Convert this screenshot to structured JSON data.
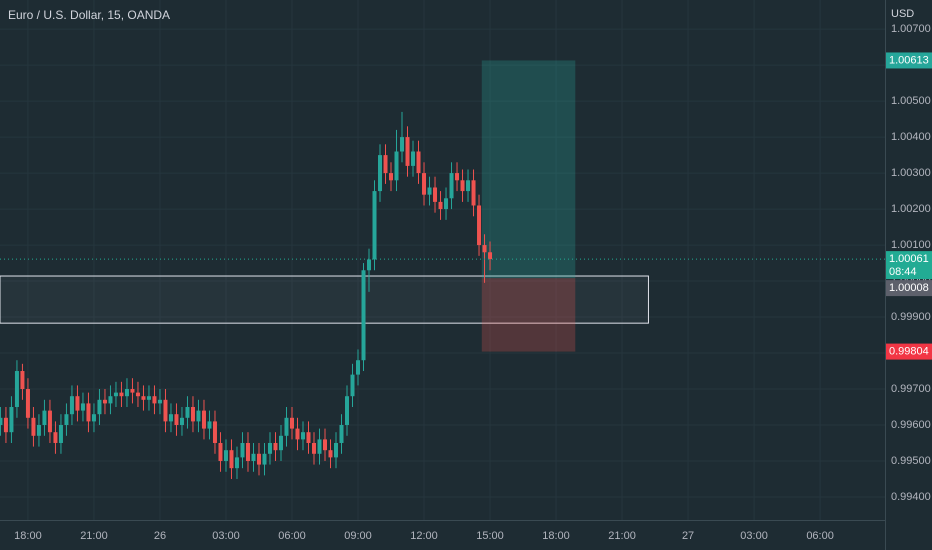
{
  "chart_data": {
    "type": "candlestick",
    "title": "Euro / U.S. Dollar, 15, OANDA",
    "y_axis_label": "USD",
    "up_color": "#26a69a",
    "down_color": "#ef5350",
    "grid": true,
    "xlim": [
      -7.27,
      32.95
    ],
    "xticks": [
      {
        "value": -6,
        "label": "18:00"
      },
      {
        "value": -3,
        "label": "21:00"
      },
      {
        "value": 0,
        "label": "26"
      },
      {
        "value": 3,
        "label": "03:00"
      },
      {
        "value": 6,
        "label": "06:00"
      },
      {
        "value": 9,
        "label": "09:00"
      },
      {
        "value": 12,
        "label": "12:00"
      },
      {
        "value": 15,
        "label": "15:00"
      },
      {
        "value": 18,
        "label": "18:00"
      },
      {
        "value": 21,
        "label": "21:00"
      },
      {
        "value": 24,
        "label": "27"
      },
      {
        "value": 27,
        "label": "03:00"
      },
      {
        "value": 30,
        "label": "06:00"
      }
    ],
    "ylim": [
      0.99336,
      1.00781
    ],
    "yticks": [
      {
        "value": 0.994,
        "label": "0.99400"
      },
      {
        "value": 0.995,
        "label": "0.99500"
      },
      {
        "value": 0.996,
        "label": "0.99600"
      },
      {
        "value": 0.997,
        "label": "0.99700"
      },
      {
        "value": 0.998,
        "label": "0.99800"
      },
      {
        "value": 0.999,
        "label": "0.99900"
      },
      {
        "value": 1.0,
        "label": "1.00000"
      },
      {
        "value": 1.001,
        "label": "1.00100"
      },
      {
        "value": 1.002,
        "label": "1.00200"
      },
      {
        "value": 1.003,
        "label": "1.00300"
      },
      {
        "value": 1.004,
        "label": "1.00400"
      },
      {
        "value": 1.005,
        "label": "1.00500"
      },
      {
        "value": 1.006,
        "label": "1.00600"
      },
      {
        "value": 1.007,
        "label": "1.00700"
      }
    ],
    "x": [
      -7.25,
      -7,
      -6.75,
      -6.5,
      -6.25,
      -6,
      -5.75,
      -5.5,
      -5.25,
      -5,
      -4.75,
      -4.5,
      -4.25,
      -4,
      -3.75,
      -3.5,
      -3.25,
      -3,
      -2.75,
      -2.5,
      -2.25,
      -2,
      -1.75,
      -1.5,
      -1.25,
      -1,
      -0.75,
      -0.5,
      -0.25,
      0,
      0.25,
      0.5,
      0.75,
      1,
      1.25,
      1.5,
      1.75,
      2,
      2.25,
      2.5,
      2.75,
      3,
      3.25,
      3.5,
      3.75,
      4,
      4.25,
      4.5,
      4.75,
      5,
      5.25,
      5.5,
      5.75,
      6,
      6.25,
      6.5,
      6.75,
      7,
      7.25,
      7.5,
      7.75,
      8,
      8.25,
      8.5,
      8.75,
      9,
      9.25,
      9.5,
      9.75,
      10,
      10.25,
      10.5,
      10.75,
      11,
      11.25,
      11.5,
      11.75,
      12,
      12.25,
      12.5,
      12.75,
      13,
      13.25,
      13.5,
      13.75,
      14,
      14.25,
      14.5,
      14.75,
      15
    ],
    "open": [
      0.996,
      0.9962,
      0.9958,
      0.9965,
      0.9975,
      0.997,
      0.9962,
      0.9957,
      0.996,
      0.9964,
      0.9958,
      0.9955,
      0.996,
      0.9963,
      0.9968,
      0.9964,
      0.9966,
      0.9961,
      0.9963,
      0.9967,
      0.9966,
      0.9968,
      0.9969,
      0.9968,
      0.997,
      0.9969,
      0.9968,
      0.9967,
      0.9968,
      0.9966,
      0.9967,
      0.9961,
      0.9963,
      0.996,
      0.9962,
      0.9965,
      0.9961,
      0.9964,
      0.9959,
      0.9961,
      0.9955,
      0.995,
      0.9953,
      0.9948,
      0.9951,
      0.9955,
      0.995,
      0.9952,
      0.9949,
      0.9952,
      0.9955,
      0.9953,
      0.9957,
      0.9962,
      0.9959,
      0.9956,
      0.9958,
      0.9955,
      0.9952,
      0.9956,
      0.9953,
      0.9951,
      0.9955,
      0.996,
      0.9968,
      0.9974,
      0.9978,
      1.0003,
      1.0006,
      1.0025,
      1.0035,
      1.003,
      1.0028,
      1.0036,
      1.004,
      1.0032,
      1.0036,
      1.003,
      1.0024,
      1.0026,
      1.0022,
      1.002,
      1.0023,
      1.003,
      1.0028,
      1.0025,
      1.0028,
      1.0021,
      1.001,
      1.0008
    ],
    "high": [
      0.9965,
      0.9965,
      0.9968,
      0.9978,
      0.9977,
      0.9973,
      0.9965,
      0.9963,
      0.9967,
      0.9967,
      0.9961,
      0.9963,
      0.9966,
      0.9971,
      0.9971,
      0.9969,
      0.9969,
      0.9966,
      0.997,
      0.997,
      0.9971,
      0.9972,
      0.9972,
      0.9973,
      0.9973,
      0.9972,
      0.9971,
      0.9971,
      0.9971,
      0.997,
      0.997,
      0.9966,
      0.9966,
      0.9965,
      0.9968,
      0.9968,
      0.9967,
      0.9967,
      0.9964,
      0.9964,
      0.9958,
      0.9956,
      0.9956,
      0.9954,
      0.9958,
      0.9958,
      0.9955,
      0.9955,
      0.9955,
      0.9958,
      0.9958,
      0.996,
      0.9965,
      0.9965,
      0.9962,
      0.9961,
      0.9961,
      0.9958,
      0.9959,
      0.9959,
      0.9956,
      0.9958,
      0.9963,
      0.9971,
      0.9977,
      0.9981,
      1.0005,
      1.0009,
      1.0028,
      1.0038,
      1.0038,
      1.0033,
      1.0042,
      1.0047,
      1.0043,
      1.0039,
      1.0039,
      1.0033,
      1.0029,
      1.0029,
      1.0025,
      1.0026,
      1.0033,
      1.0033,
      1.0031,
      1.0031,
      1.0031,
      1.0024,
      1.0013,
      1.0011
    ],
    "low": [
      0.9957,
      0.9955,
      0.9955,
      0.9962,
      0.9967,
      0.9959,
      0.9954,
      0.9954,
      0.9957,
      0.9955,
      0.9952,
      0.9952,
      0.9957,
      0.996,
      0.9961,
      0.9961,
      0.9958,
      0.9958,
      0.996,
      0.9963,
      0.9963,
      0.9965,
      0.9965,
      0.9965,
      0.9966,
      0.9965,
      0.9964,
      0.9964,
      0.9963,
      0.9963,
      0.9958,
      0.9958,
      0.9957,
      0.9957,
      0.9959,
      0.9958,
      0.9958,
      0.9956,
      0.9956,
      0.9952,
      0.9947,
      0.9947,
      0.9945,
      0.9945,
      0.9948,
      0.9947,
      0.9947,
      0.9946,
      0.9946,
      0.9949,
      0.995,
      0.995,
      0.9954,
      0.9956,
      0.9953,
      0.9953,
      0.9952,
      0.9949,
      0.9949,
      0.995,
      0.9948,
      0.9948,
      0.9952,
      0.9957,
      0.9965,
      0.9971,
      0.9975,
      0.9997,
      1.0003,
      1.0022,
      1.0027,
      1.0025,
      1.0025,
      1.0033,
      1.0029,
      1.0029,
      1.0027,
      1.0021,
      1.0021,
      1.0019,
      1.0017,
      1.0017,
      1.002,
      1.0025,
      1.0022,
      1.0022,
      1.0018,
      1.0007,
      0.99995,
      1.0003
    ],
    "close": [
      0.9962,
      0.9958,
      0.9965,
      0.9975,
      0.997,
      0.9962,
      0.9957,
      0.996,
      0.9964,
      0.9958,
      0.9955,
      0.996,
      0.9963,
      0.9968,
      0.9964,
      0.9966,
      0.9961,
      0.9963,
      0.9967,
      0.9966,
      0.9968,
      0.9969,
      0.9968,
      0.997,
      0.9969,
      0.9968,
      0.9967,
      0.9968,
      0.9966,
      0.9967,
      0.9961,
      0.9963,
      0.996,
      0.9962,
      0.9965,
      0.9961,
      0.9964,
      0.9959,
      0.9961,
      0.9955,
      0.995,
      0.9953,
      0.9948,
      0.9951,
      0.9955,
      0.995,
      0.9952,
      0.9949,
      0.9952,
      0.9955,
      0.9953,
      0.9957,
      0.9962,
      0.9959,
      0.9956,
      0.9958,
      0.9955,
      0.9952,
      0.9956,
      0.9953,
      0.9951,
      0.9955,
      0.996,
      0.9968,
      0.9974,
      0.9978,
      1.0003,
      1.0006,
      1.0025,
      1.0035,
      1.003,
      1.0028,
      1.0036,
      1.004,
      1.0032,
      1.0036,
      1.003,
      1.0024,
      1.0026,
      1.0022,
      1.002,
      1.0023,
      1.003,
      1.0028,
      1.0025,
      1.0028,
      1.0021,
      1.001,
      1.0008,
      1.00061
    ],
    "last_price": {
      "value": 1.00061,
      "label": "1.00061",
      "countdown": "08:44",
      "color": "#22ab94"
    },
    "zone": {
      "top": 1.00014,
      "bottom": 0.99883,
      "x_end": 22.2
    },
    "position": {
      "x_start": 14.625,
      "x_end": 18.875,
      "take_profit": {
        "value": 1.00613,
        "label": "1.00613",
        "color": "#26a69a"
      },
      "entry": {
        "value": 1.00008,
        "label": "1.00008",
        "color": "#5d606b"
      },
      "stop_loss": {
        "value": 0.99804,
        "label": "0.99804",
        "color": "#f23645"
      }
    }
  }
}
